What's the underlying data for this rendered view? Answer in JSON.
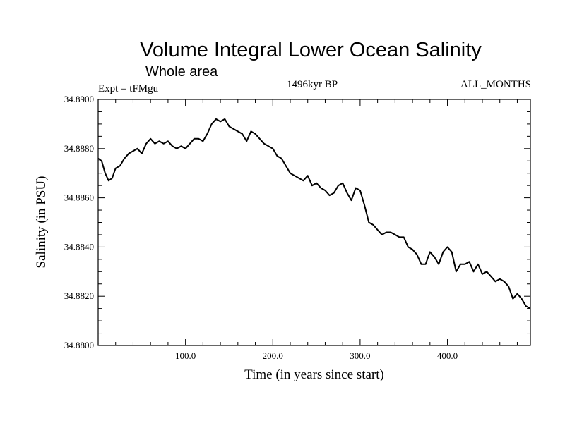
{
  "chart_data": {
    "type": "line",
    "title": "Volume Integral Lower Ocean Salinity",
    "subtitle": "Whole area",
    "experiment": "Expt = tFMgu",
    "period": "1496kyr BP",
    "months": "ALL_MONTHS",
    "xlabel": "Time (in years since start)",
    "ylabel": "Salinity (in PSU)",
    "xlim": [
      0,
      495
    ],
    "ylim": [
      34.88,
      34.89
    ],
    "x_ticks": [
      100,
      200,
      300,
      400
    ],
    "x_tick_labels": [
      "100.0",
      "200.0",
      "300.0",
      "400.0"
    ],
    "y_ticks": [
      34.88,
      34.882,
      34.884,
      34.886,
      34.888,
      34.89
    ],
    "y_tick_labels": [
      "34.8800",
      "34.8820",
      "34.8840",
      "34.8860",
      "34.8880",
      "34.8900"
    ],
    "series": [
      {
        "name": "Salinity",
        "color": "#000000",
        "x": [
          0,
          4,
          8,
          12,
          16,
          20,
          25,
          30,
          35,
          40,
          45,
          50,
          55,
          60,
          65,
          70,
          75,
          80,
          85,
          90,
          95,
          100,
          105,
          110,
          115,
          120,
          125,
          130,
          135,
          140,
          145,
          150,
          155,
          160,
          165,
          170,
          175,
          180,
          185,
          190,
          195,
          200,
          205,
          210,
          215,
          220,
          225,
          230,
          235,
          240,
          245,
          250,
          255,
          260,
          265,
          270,
          275,
          280,
          285,
          290,
          295,
          300,
          305,
          310,
          315,
          320,
          325,
          330,
          335,
          340,
          345,
          350,
          355,
          360,
          365,
          370,
          375,
          380,
          385,
          390,
          395,
          400,
          405,
          410,
          415,
          420,
          425,
          430,
          435,
          440,
          445,
          450,
          455,
          460,
          465,
          470,
          475,
          480,
          485,
          490,
          495
        ],
        "values": [
          34.8876,
          34.8875,
          34.887,
          34.8867,
          34.8868,
          34.8872,
          34.8873,
          34.8876,
          34.8878,
          34.8879,
          34.888,
          34.8878,
          34.8882,
          34.8884,
          34.8882,
          34.8883,
          34.8882,
          34.8883,
          34.8881,
          34.888,
          34.8881,
          34.888,
          34.8882,
          34.8884,
          34.8884,
          34.8883,
          34.8886,
          34.889,
          34.8892,
          34.8891,
          34.8892,
          34.8889,
          34.8888,
          34.8887,
          34.8886,
          34.8883,
          34.8887,
          34.8886,
          34.8884,
          34.8882,
          34.8881,
          34.888,
          34.8877,
          34.8876,
          34.8873,
          34.887,
          34.8869,
          34.8868,
          34.8867,
          34.8869,
          34.8865,
          34.8866,
          34.8864,
          34.8863,
          34.8861,
          34.8862,
          34.8865,
          34.8866,
          34.8862,
          34.8859,
          34.8864,
          34.8863,
          34.8857,
          34.885,
          34.8849,
          34.8847,
          34.8845,
          34.8846,
          34.8846,
          34.8845,
          34.8844,
          34.8844,
          34.884,
          34.8839,
          34.8837,
          34.8833,
          34.8833,
          34.8838,
          34.8836,
          34.8833,
          34.8838,
          34.884,
          34.8838,
          34.883,
          34.8833,
          34.8833,
          34.8834,
          34.883,
          34.8833,
          34.8829,
          34.883,
          34.8828,
          34.8826,
          34.8827,
          34.8826,
          34.8824,
          34.8819,
          34.8821,
          34.8819,
          34.8816,
          34.8815
        ]
      }
    ]
  }
}
